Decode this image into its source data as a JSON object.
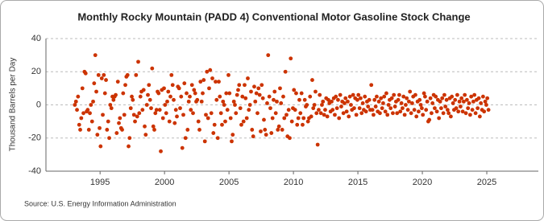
{
  "chart_data": {
    "type": "scatter",
    "title": "Monthly Rocky Mountain (PADD 4) Conventional Motor Gasoline Stock Change",
    "y_label": "Thousand Barrels per Day",
    "source": "Source: U.S. Energy Information Administration",
    "color": "#cc3300",
    "grid": true,
    "xlim": [
      1990.8,
      2029
    ],
    "ylim": [
      -40,
      40
    ],
    "xticks": [
      1995,
      2000,
      2005,
      2010,
      2015,
      2020,
      2025
    ],
    "yticks": [
      -40,
      -20,
      0,
      20,
      40
    ],
    "x": [
      1993.04,
      1993.13,
      1993.21,
      1993.29,
      1993.38,
      1993.46,
      1993.54,
      1993.63,
      1993.71,
      1993.79,
      1993.88,
      1993.96,
      1994.04,
      1994.13,
      1994.21,
      1994.29,
      1994.38,
      1994.46,
      1994.54,
      1994.63,
      1994.71,
      1994.79,
      1994.88,
      1994.96,
      1995.04,
      1995.13,
      1995.21,
      1995.29,
      1995.38,
      1995.46,
      1995.54,
      1995.63,
      1995.71,
      1995.79,
      1995.88,
      1995.96,
      1996.04,
      1996.13,
      1996.21,
      1996.29,
      1996.38,
      1996.46,
      1996.54,
      1996.63,
      1996.71,
      1996.79,
      1996.88,
      1996.96,
      1997.04,
      1997.13,
      1997.21,
      1997.29,
      1997.38,
      1997.46,
      1997.54,
      1997.63,
      1997.71,
      1997.79,
      1997.88,
      1997.96,
      1998.04,
      1998.13,
      1998.21,
      1998.29,
      1998.38,
      1998.46,
      1998.54,
      1998.63,
      1998.71,
      1998.79,
      1998.88,
      1998.96,
      1999.04,
      1999.13,
      1999.21,
      1999.29,
      1999.38,
      1999.46,
      1999.54,
      1999.63,
      1999.71,
      1999.79,
      1999.88,
      1999.96,
      2000.04,
      2000.13,
      2000.21,
      2000.29,
      2000.38,
      2000.46,
      2000.54,
      2000.63,
      2000.71,
      2000.79,
      2000.88,
      2000.96,
      2001.04,
      2001.13,
      2001.21,
      2001.29,
      2001.38,
      2001.46,
      2001.54,
      2001.63,
      2001.71,
      2001.79,
      2001.88,
      2001.96,
      2002.04,
      2002.13,
      2002.21,
      2002.29,
      2002.38,
      2002.46,
      2002.54,
      2002.63,
      2002.71,
      2002.79,
      2002.88,
      2002.96,
      2003.04,
      2003.13,
      2003.21,
      2003.29,
      2003.38,
      2003.46,
      2003.54,
      2003.63,
      2003.71,
      2003.79,
      2003.88,
      2003.96,
      2004.04,
      2004.13,
      2004.21,
      2004.29,
      2004.38,
      2004.46,
      2004.54,
      2004.63,
      2004.71,
      2004.79,
      2004.88,
      2004.96,
      2005.04,
      2005.13,
      2005.21,
      2005.29,
      2005.38,
      2005.46,
      2005.54,
      2005.63,
      2005.71,
      2005.79,
      2005.88,
      2005.96,
      2006.04,
      2006.13,
      2006.21,
      2006.29,
      2006.38,
      2006.46,
      2006.54,
      2006.63,
      2006.71,
      2006.79,
      2006.88,
      2006.96,
      2007.04,
      2007.13,
      2007.21,
      2007.29,
      2007.38,
      2007.46,
      2007.54,
      2007.63,
      2007.71,
      2007.79,
      2007.88,
      2007.96,
      2008.04,
      2008.13,
      2008.21,
      2008.29,
      2008.38,
      2008.46,
      2008.54,
      2008.63,
      2008.71,
      2008.79,
      2008.88,
      2008.96,
      2009.04,
      2009.13,
      2009.21,
      2009.29,
      2009.38,
      2009.46,
      2009.54,
      2009.63,
      2009.71,
      2009.79,
      2009.88,
      2009.96,
      2010.04,
      2010.13,
      2010.21,
      2010.29,
      2010.38,
      2010.46,
      2010.54,
      2010.63,
      2010.71,
      2010.79,
      2010.88,
      2010.96,
      2011.04,
      2011.13,
      2011.21,
      2011.29,
      2011.38,
      2011.46,
      2011.54,
      2011.63,
      2011.71,
      2011.79,
      2011.88,
      2011.96,
      2012.04,
      2012.13,
      2012.21,
      2012.29,
      2012.38,
      2012.46,
      2012.54,
      2012.63,
      2012.71,
      2012.79,
      2012.88,
      2012.96,
      2013.04,
      2013.13,
      2013.21,
      2013.29,
      2013.38,
      2013.46,
      2013.54,
      2013.63,
      2013.71,
      2013.79,
      2013.88,
      2013.96,
      2014.04,
      2014.13,
      2014.21,
      2014.29,
      2014.38,
      2014.46,
      2014.54,
      2014.63,
      2014.71,
      2014.79,
      2014.88,
      2014.96,
      2015.04,
      2015.13,
      2015.21,
      2015.29,
      2015.38,
      2015.46,
      2015.54,
      2015.63,
      2015.71,
      2015.79,
      2015.88,
      2015.96,
      2016.04,
      2016.13,
      2016.21,
      2016.29,
      2016.38,
      2016.46,
      2016.54,
      2016.63,
      2016.71,
      2016.79,
      2016.88,
      2016.96,
      2017.04,
      2017.13,
      2017.21,
      2017.29,
      2017.38,
      2017.46,
      2017.54,
      2017.63,
      2017.71,
      2017.79,
      2017.88,
      2017.96,
      2018.04,
      2018.13,
      2018.21,
      2018.29,
      2018.38,
      2018.46,
      2018.54,
      2018.63,
      2018.71,
      2018.79,
      2018.88,
      2018.96,
      2019.04,
      2019.13,
      2019.21,
      2019.29,
      2019.38,
      2019.46,
      2019.54,
      2019.63,
      2019.71,
      2019.79,
      2019.88,
      2019.96,
      2020.04,
      2020.13,
      2020.21,
      2020.29,
      2020.38,
      2020.46,
      2020.54,
      2020.63,
      2020.71,
      2020.79,
      2020.88,
      2020.96,
      2021.04,
      2021.13,
      2021.21,
      2021.29,
      2021.38,
      2021.46,
      2021.54,
      2021.63,
      2021.71,
      2021.79,
      2021.88,
      2021.96,
      2022.04,
      2022.13,
      2022.21,
      2022.29,
      2022.38,
      2022.46,
      2022.54,
      2022.63,
      2022.71,
      2022.79,
      2022.88,
      2022.96,
      2023.04,
      2023.13,
      2023.21,
      2023.29,
      2023.38,
      2023.46,
      2023.54,
      2023.63,
      2023.71,
      2023.79,
      2023.88,
      2023.96,
      2024.04,
      2024.13,
      2024.21,
      2024.29,
      2024.38,
      2024.46,
      2024.54,
      2024.63,
      2024.71,
      2024.79,
      2024.88,
      2024.96,
      2025.04,
      2025.13
    ],
    "values": [
      0,
      2,
      -3,
      5,
      -12,
      -15,
      -8,
      10,
      -5,
      20,
      19,
      -4,
      -3,
      -15,
      -5,
      0,
      -10,
      2,
      13,
      30,
      8,
      -18,
      18,
      -14,
      -25,
      16,
      -6,
      18,
      7,
      15,
      -15,
      -10,
      -20,
      0,
      -2,
      5,
      3,
      5,
      6,
      -17,
      14,
      -11,
      -8,
      -14,
      -15,
      7,
      -6,
      12,
      17,
      18,
      -25,
      -20,
      -2,
      5,
      3,
      -6,
      -10,
      18,
      -7,
      26,
      -5,
      5,
      8,
      -3,
      9,
      -13,
      -18,
      0,
      6,
      12,
      3,
      -2,
      22,
      -13,
      -15,
      -5,
      -3,
      8,
      7,
      -3,
      -28,
      9,
      -8,
      10,
      0,
      -5,
      2,
      8,
      -10,
      5,
      18,
      12,
      3,
      -11,
      -3,
      -7,
      11,
      10,
      -2,
      5,
      -26,
      -6,
      13,
      -20,
      7,
      -15,
      2,
      5,
      -3,
      12,
      -5,
      9,
      7,
      2,
      3,
      -10,
      -15,
      14,
      2,
      7,
      15,
      -22,
      -6,
      20,
      -8,
      10,
      21,
      -5,
      16,
      -17,
      -12,
      14,
      3,
      -20,
      14,
      5,
      -5,
      -12,
      2,
      0,
      -10,
      7,
      -3,
      18,
      7,
      -8,
      -22,
      -18,
      2,
      0,
      -5,
      6,
      9,
      12,
      -2,
      -12,
      5,
      -10,
      12,
      4,
      -8,
      16,
      -3,
      0,
      8,
      -15,
      -19,
      11,
      2,
      7,
      -5,
      10,
      6,
      -16,
      12,
      4,
      -9,
      -15,
      -18,
      1,
      30,
      5,
      -2,
      -17,
      -8,
      3,
      8,
      -5,
      2,
      -15,
      -13,
      10,
      1,
      -15,
      5,
      -8,
      20,
      -6,
      -19,
      -3,
      -20,
      28,
      -10,
      -2,
      9,
      -3,
      7,
      -12,
      -8,
      3,
      -5,
      7,
      -12,
      -8,
      3,
      -1,
      0,
      -10,
      -8,
      5,
      -7,
      15,
      -2,
      0,
      8,
      -5,
      -24,
      -3,
      6,
      -5,
      0,
      2,
      -6,
      -3,
      4,
      -7,
      3,
      1,
      -4,
      2,
      -3,
      4,
      -6,
      5,
      -2,
      3,
      -8,
      6,
      -1,
      2,
      -5,
      1,
      4,
      -4,
      2,
      -7,
      5,
      0,
      -3,
      6,
      -2,
      4,
      -6,
      3,
      6,
      -2,
      4,
      -5,
      1,
      -3,
      5,
      -4,
      2,
      -1,
      3,
      -3,
      12,
      -3,
      -6,
      3,
      -1,
      5,
      -4,
      2,
      -5,
      4,
      -2,
      1,
      5,
      -4,
      7,
      -6,
      0,
      3,
      -2,
      4,
      -5,
      6,
      -1,
      2,
      -5,
      3,
      6,
      -4,
      1,
      -2,
      5,
      -6,
      0,
      4,
      -3,
      2,
      8,
      -5,
      1,
      5,
      -3,
      6,
      -7,
      2,
      -4,
      3,
      0,
      -2,
      -6,
      7,
      5,
      -3,
      2,
      -10,
      -9,
      4,
      -5,
      1,
      6,
      -2,
      5,
      -4,
      3,
      -8,
      2,
      -2,
      4,
      -5,
      6,
      -1,
      3,
      -3,
      -5,
      4,
      -7,
      5,
      1,
      -3,
      3,
      -2,
      6,
      -4,
      2,
      -1,
      4,
      -4,
      2,
      6,
      -5,
      3,
      -2,
      1,
      -6,
      5,
      -3,
      2,
      6,
      -5,
      3,
      -2,
      4,
      -7,
      1,
      -3,
      5,
      -4,
      2,
      0,
      4,
      -3
    ]
  }
}
